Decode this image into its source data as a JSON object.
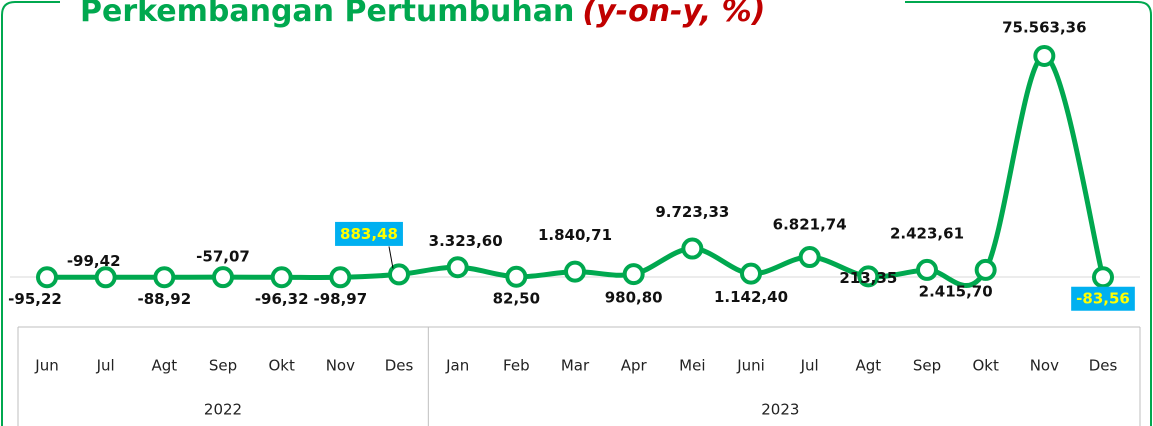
{
  "chart_data": {
    "type": "line",
    "title": "Perkembangan Pertumbuhan",
    "title_note": "(y-on-y, %)",
    "groups": [
      {
        "label": "2022",
        "categories": [
          "Jun",
          "Jul",
          "Agt",
          "Sep",
          "Okt",
          "Nov",
          "Des"
        ]
      },
      {
        "label": "2023",
        "categories": [
          "Jan",
          "Feb",
          "Mar",
          "Apr",
          "Mei",
          "Juni",
          "Jul",
          "Agt",
          "Sep",
          "Okt",
          "Nov",
          "Des"
        ]
      }
    ],
    "series": [
      {
        "name": "Pertumbuhan",
        "color": "#00a84f",
        "values": [
          -95.22,
          -99.42,
          -88.92,
          -57.07,
          -96.32,
          -98.97,
          883.48,
          3323.6,
          82.5,
          1840.71,
          980.8,
          9723.33,
          1142.4,
          6821.74,
          213.35,
          2423.61,
          2415.7,
          75563.36,
          -83.56
        ],
        "value_labels": [
          "-95,22",
          "-99,42",
          "-88,92",
          "-57,07",
          "-96,32",
          "-98,97",
          "883,48",
          "3.323,60",
          "82,50",
          "1.840,71",
          "980,80",
          "9.723,33",
          "1.142,40",
          "6.821,74",
          "213,35",
          "2.423,61",
          "2.415,70",
          "75.563,36",
          "-83,56"
        ]
      }
    ]
  }
}
